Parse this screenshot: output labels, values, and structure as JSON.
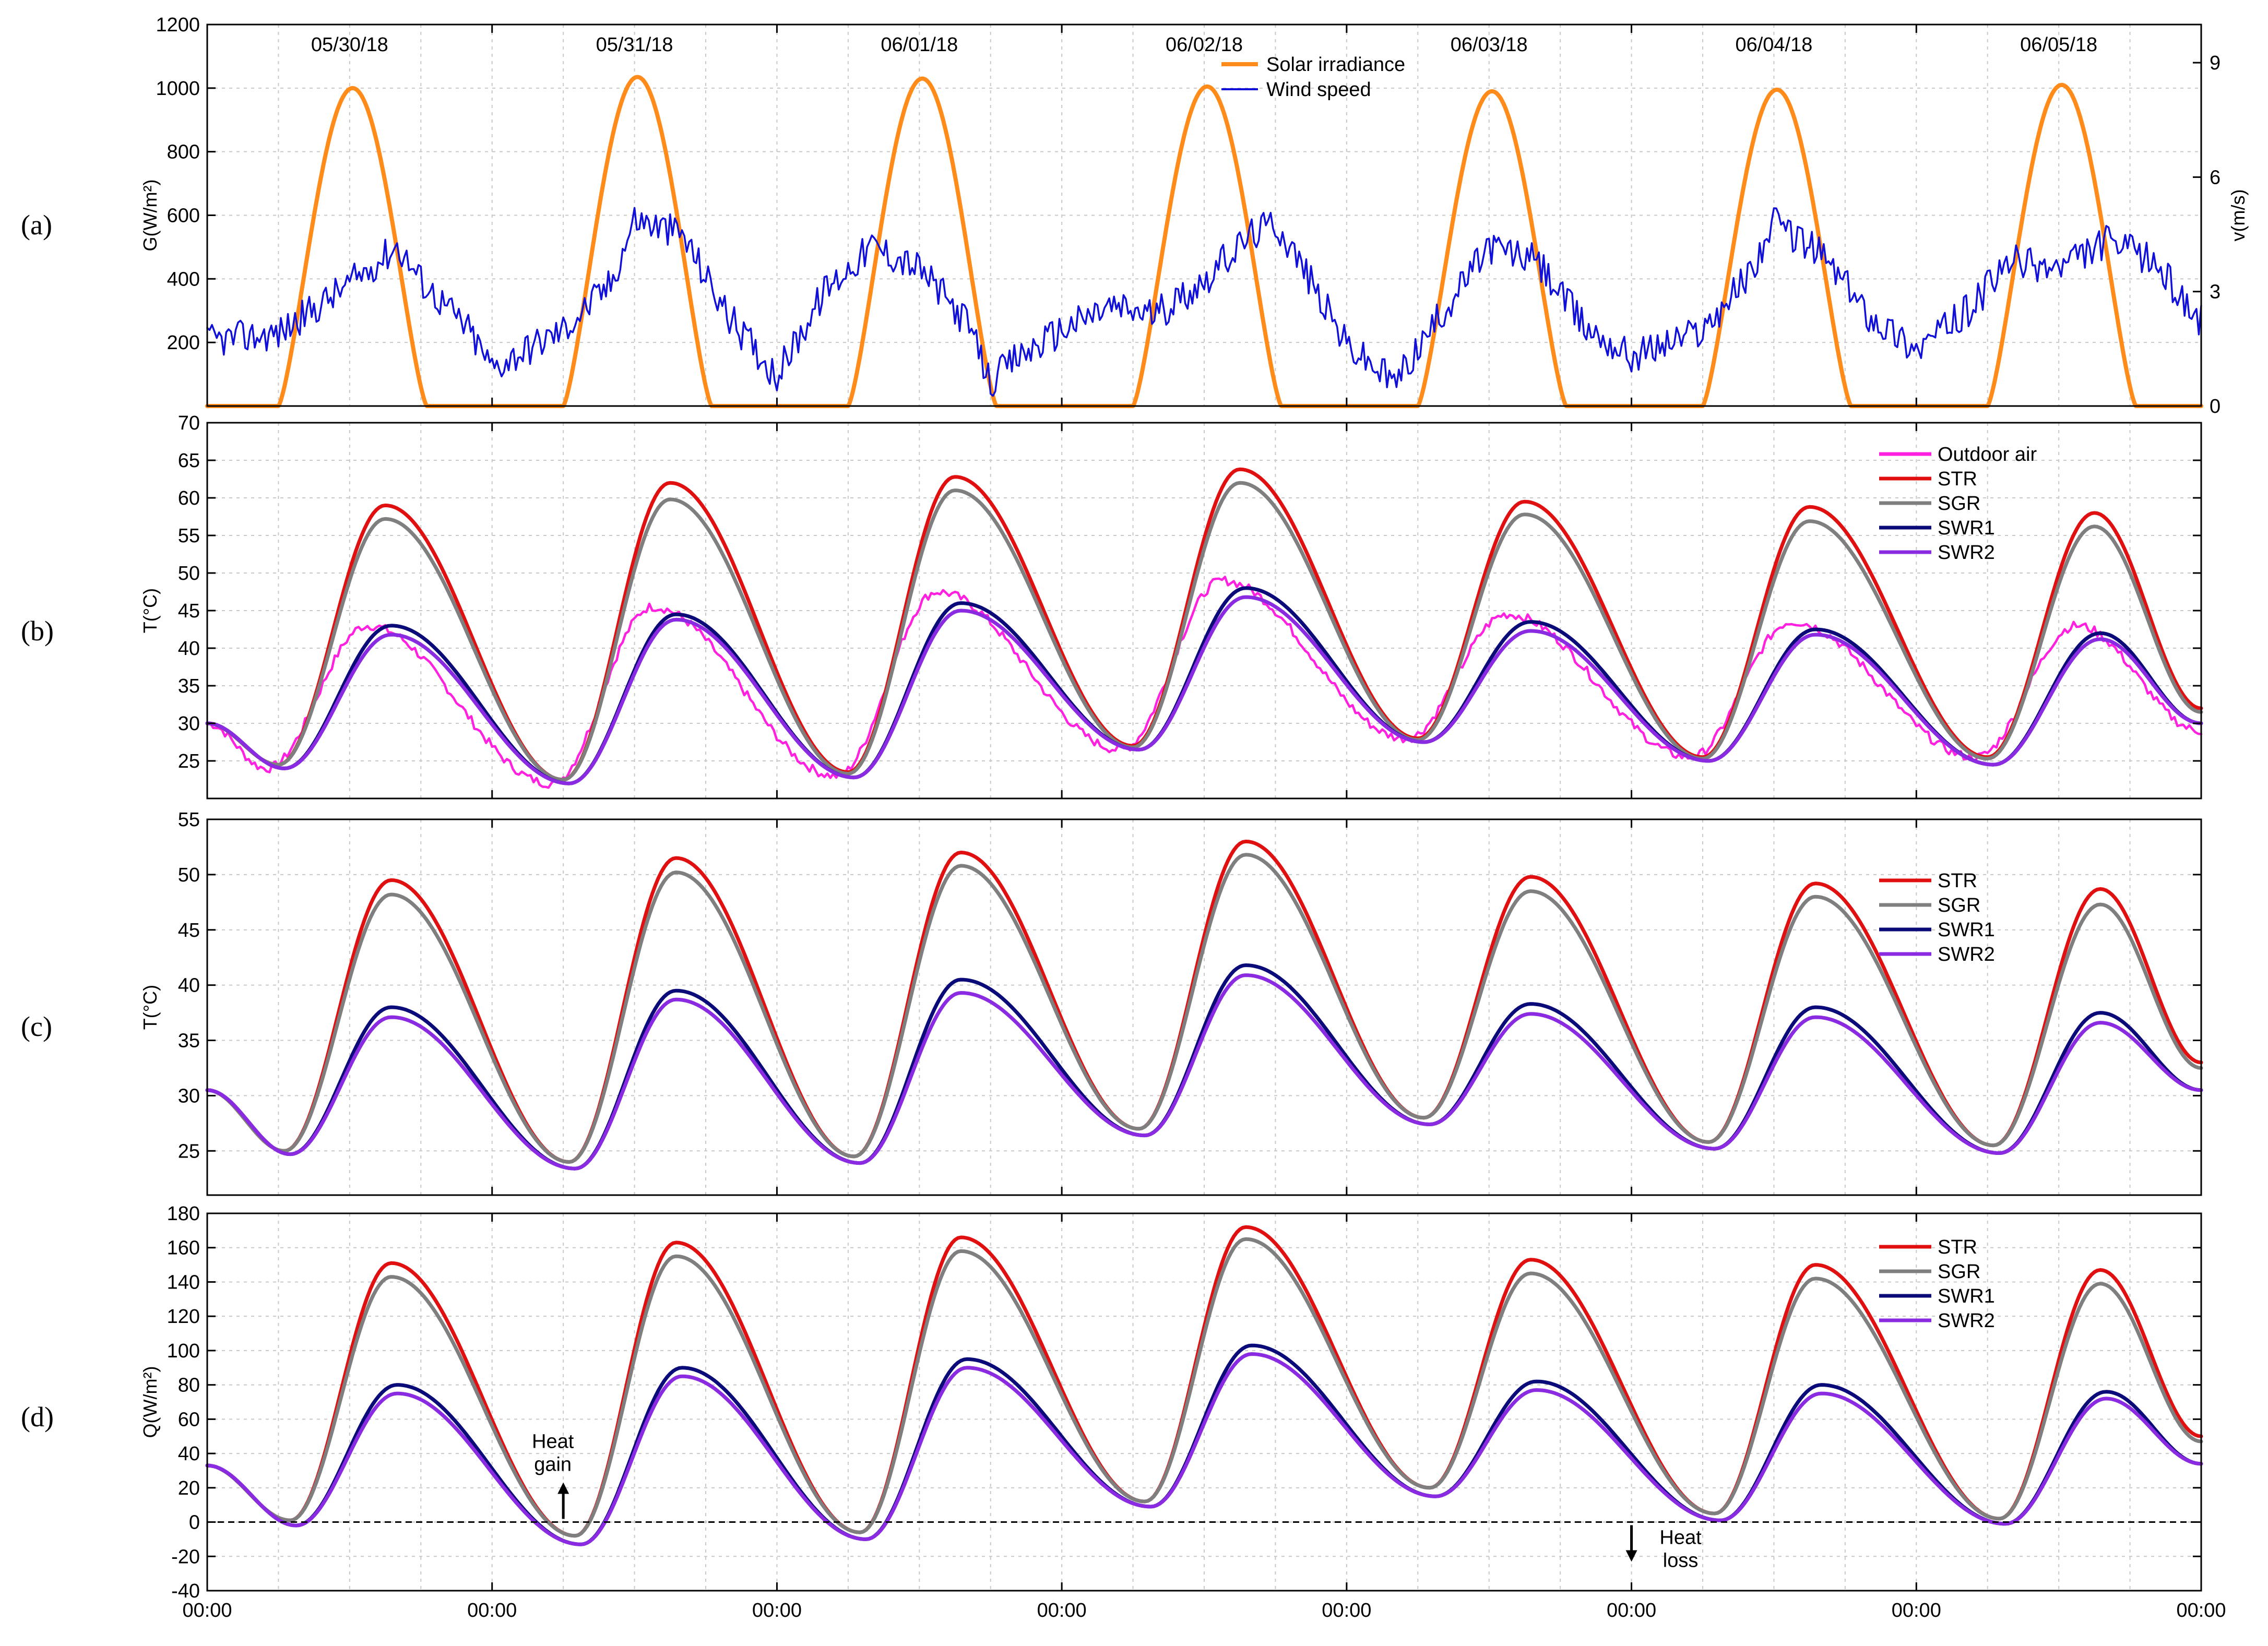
{
  "figure": {
    "colors": {
      "solar": "#ff8c1a",
      "wind": "#1010d8",
      "outdoor": "#ff20e0",
      "str": "#e01010",
      "sgr": "#7f7f7f",
      "swr1": "#0a0a78",
      "swr2": "#8a2be2"
    },
    "x_tick_labels": [
      "00:00",
      "00:00",
      "00:00",
      "00:00",
      "00:00",
      "00:00",
      "00:00",
      "00:00"
    ]
  },
  "chart_data": [
    {
      "id": "a",
      "panel_label": "(a)",
      "type": "line",
      "ylabel": "G(W/m²)",
      "y2label": "v(m/s)",
      "ylim": [
        0,
        1200
      ],
      "y2lim": [
        0,
        10
      ],
      "yticks": [
        200,
        400,
        600,
        800,
        1000,
        1200
      ],
      "y2ticks": [
        0,
        3,
        6,
        9
      ],
      "xlim_days": [
        0,
        7
      ],
      "date_labels": [
        "05/30/18",
        "05/31/18",
        "06/01/18",
        "06/02/18",
        "06/03/18",
        "06/04/18",
        "06/05/18"
      ],
      "legend": [
        "Solar irradiance",
        "Wind speed"
      ],
      "legend_position": "top-center",
      "series": [
        {
          "name": "Solar irradiance",
          "axis": "left",
          "color_key": "solar",
          "daily_peak": [
            1000,
            1035,
            1030,
            1005,
            990,
            995,
            1010
          ],
          "sunrise_h": 6.0,
          "peak_h": 12.5,
          "sunset_h": 18.5
        },
        {
          "name": "Wind speed",
          "axis": "right",
          "color_key": "wind",
          "hours": [
            0,
            6,
            12,
            16,
            18,
            22,
            24,
            30,
            34,
            36,
            40,
            44,
            48,
            52,
            56,
            60,
            64,
            66,
            68,
            72,
            76,
            80,
            84,
            88,
            90,
            92,
            96,
            100,
            104,
            106,
            108,
            112,
            116,
            120,
            126,
            130,
            132,
            136,
            140,
            144,
            148,
            152,
            156,
            160,
            164,
            166,
            168
          ],
          "values": [
            1.7,
            1.9,
            3.2,
            4.2,
            3.3,
            2.0,
            1.0,
            2.0,
            3.2,
            4.9,
            4.5,
            2.3,
            0.8,
            3.0,
            4.2,
            3.6,
            2.2,
            0.6,
            1.2,
            2.0,
            2.6,
            2.4,
            3.3,
            4.5,
            4.8,
            3.8,
            1.6,
            0.6,
            2.4,
            3.3,
            4.2,
            3.8,
            2.1,
            1.3,
            2.0,
            3.5,
            4.8,
            4.0,
            2.4,
            1.5,
            2.4,
            3.8,
            3.6,
            4.3,
            3.8,
            3.0,
            2.2
          ]
        }
      ]
    },
    {
      "id": "b",
      "panel_label": "(b)",
      "type": "line",
      "ylabel": "T(°C)",
      "ylim": [
        20,
        70
      ],
      "yticks": [
        25,
        30,
        35,
        40,
        45,
        50,
        55,
        60,
        65,
        70
      ],
      "legend": [
        "Outdoor air",
        "STR",
        "SGR",
        "SWR1",
        "SWR2"
      ],
      "legend_position": "top-right",
      "start_value": 30,
      "series": [
        {
          "name": "Outdoor air",
          "color_key": "outdoor",
          "peak_h": 13.5,
          "min_h": 5.0,
          "daily_max": [
            43,
            45.5,
            47.5,
            49,
            44.5,
            43.5,
            43
          ],
          "daily_min": [
            24,
            22,
            23,
            26.5,
            28,
            25.5,
            25.5
          ],
          "end_value": 29
        },
        {
          "name": "STR",
          "color_key": "str",
          "peak_h": 15.0,
          "min_h": 6.0,
          "daily_max": [
            59,
            62,
            62.8,
            63.8,
            59.5,
            58.8,
            58
          ],
          "daily_min": [
            24.5,
            22.5,
            23.5,
            27,
            28,
            25.5,
            25.5
          ],
          "end_value": 32
        },
        {
          "name": "SGR",
          "color_key": "sgr",
          "peak_h": 15.0,
          "min_h": 6.0,
          "daily_max": [
            57.2,
            59.8,
            61,
            62,
            57.8,
            56.9,
            56.2
          ],
          "daily_min": [
            24.5,
            22.5,
            23.3,
            26.8,
            27.8,
            25.3,
            25.3
          ],
          "end_value": 31.5
        },
        {
          "name": "SWR1",
          "color_key": "swr1",
          "peak_h": 15.5,
          "min_h": 6.5,
          "daily_max": [
            43,
            44.5,
            46,
            48,
            43.5,
            42.5,
            42
          ],
          "daily_min": [
            24,
            22,
            22.8,
            26.5,
            27.5,
            25,
            24.5
          ],
          "end_value": 30
        },
        {
          "name": "SWR2",
          "color_key": "swr2",
          "peak_h": 15.5,
          "min_h": 6.5,
          "daily_max": [
            41.8,
            43.8,
            45,
            46.8,
            42.3,
            41.8,
            41.2
          ],
          "daily_min": [
            24,
            22,
            22.8,
            26.5,
            27.5,
            25,
            24.5
          ],
          "end_value": 30
        }
      ]
    },
    {
      "id": "c",
      "panel_label": "(c)",
      "type": "line",
      "ylabel": "T(°C)",
      "ylim": [
        21,
        55
      ],
      "yticks": [
        25,
        30,
        35,
        40,
        45,
        50,
        55
      ],
      "legend": [
        "STR",
        "SGR",
        "SWR1",
        "SWR2"
      ],
      "legend_position": "top-right",
      "start_value": 30.5,
      "series": [
        {
          "name": "STR",
          "color_key": "str",
          "peak_h": 15.5,
          "min_h": 6.5,
          "daily_max": [
            49.5,
            51.5,
            52,
            53,
            49.8,
            49.2,
            48.7
          ],
          "daily_min": [
            25,
            24,
            24.5,
            27,
            28,
            25.8,
            25.5
          ],
          "end_value": 33
        },
        {
          "name": "SGR",
          "color_key": "sgr",
          "peak_h": 15.5,
          "min_h": 6.5,
          "daily_max": [
            48.2,
            50.2,
            50.8,
            51.8,
            48.5,
            48,
            47.3
          ],
          "daily_min": [
            25,
            24,
            24.5,
            27,
            28,
            25.8,
            25.5
          ],
          "end_value": 32.5
        },
        {
          "name": "SWR1",
          "color_key": "swr1",
          "peak_h": 15.5,
          "min_h": 7.0,
          "daily_max": [
            38,
            39.5,
            40.5,
            41.8,
            38.3,
            38,
            37.5
          ],
          "daily_min": [
            24.7,
            23.4,
            23.9,
            26.4,
            27.4,
            25.2,
            24.8
          ],
          "end_value": 30.5
        },
        {
          "name": "SWR2",
          "color_key": "swr2",
          "peak_h": 15.5,
          "min_h": 7.0,
          "daily_max": [
            37.1,
            38.7,
            39.3,
            40.9,
            37.4,
            37.1,
            36.6
          ],
          "daily_min": [
            24.7,
            23.4,
            23.9,
            26.4,
            27.4,
            25.2,
            24.8
          ],
          "end_value": 30.5
        }
      ]
    },
    {
      "id": "d",
      "panel_label": "(d)",
      "type": "line",
      "ylabel": "Q(W/m²)",
      "ylim": [
        -40,
        180
      ],
      "yticks": [
        -40,
        -20,
        0,
        20,
        40,
        60,
        80,
        100,
        120,
        140,
        160,
        180
      ],
      "legend": [
        "STR",
        "SGR",
        "SWR1",
        "SWR2"
      ],
      "legend_position": "top-right",
      "zero_line": true,
      "start_value": 33,
      "annotations": [
        {
          "text": [
            "Heat",
            "gain"
          ],
          "x_h": 30,
          "y": 8,
          "arrow": "up"
        },
        {
          "text": [
            "Heat",
            "loss"
          ],
          "x_h": 120,
          "y": -2,
          "arrow": "down"
        }
      ],
      "series": [
        {
          "name": "STR",
          "color_key": "str",
          "peak_h": 15.5,
          "min_h": 7.0,
          "daily_max": [
            151,
            163,
            166,
            172,
            153,
            150,
            147
          ],
          "daily_min": [
            1,
            -8,
            -6,
            12,
            20,
            5,
            2
          ],
          "end_value": 50
        },
        {
          "name": "SGR",
          "color_key": "sgr",
          "peak_h": 15.5,
          "min_h": 7.0,
          "daily_max": [
            143,
            155,
            158,
            165,
            145,
            142,
            139
          ],
          "daily_min": [
            1,
            -8,
            -6,
            12,
            20,
            5,
            2
          ],
          "end_value": 47
        },
        {
          "name": "SWR1",
          "color_key": "swr1",
          "peak_h": 16.0,
          "min_h": 7.5,
          "daily_max": [
            80,
            90,
            95,
            103,
            82,
            80,
            76
          ],
          "daily_min": [
            -2,
            -13,
            -10,
            9,
            15,
            1,
            -1
          ],
          "end_value": 34
        },
        {
          "name": "SWR2",
          "color_key": "swr2",
          "peak_h": 16.0,
          "min_h": 7.5,
          "daily_max": [
            75,
            85,
            90,
            98,
            77,
            75,
            72
          ],
          "daily_min": [
            -2,
            -13,
            -10,
            9,
            15,
            1,
            -1
          ],
          "end_value": 34
        }
      ]
    }
  ]
}
